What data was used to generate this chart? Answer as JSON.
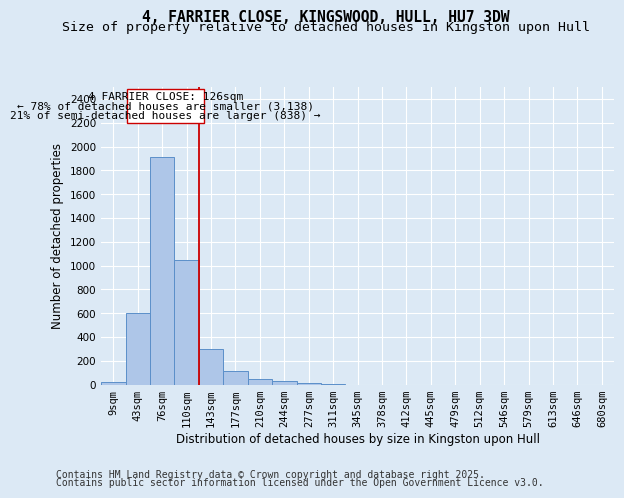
{
  "title": "4, FARRIER CLOSE, KINGSWOOD, HULL, HU7 3DW",
  "subtitle": "Size of property relative to detached houses in Kingston upon Hull",
  "xlabel": "Distribution of detached houses by size in Kingston upon Hull",
  "ylabel": "Number of detached properties",
  "categories": [
    "9sqm",
    "43sqm",
    "76sqm",
    "110sqm",
    "143sqm",
    "177sqm",
    "210sqm",
    "244sqm",
    "277sqm",
    "311sqm",
    "345sqm",
    "378sqm",
    "412sqm",
    "445sqm",
    "479sqm",
    "512sqm",
    "546sqm",
    "579sqm",
    "613sqm",
    "646sqm",
    "680sqm"
  ],
  "values": [
    20,
    605,
    1910,
    1045,
    295,
    115,
    48,
    30,
    10,
    2,
    0,
    0,
    0,
    0,
    0,
    0,
    0,
    0,
    0,
    0,
    0
  ],
  "bar_color": "#aec6e8",
  "bar_edge_color": "#5b8fc9",
  "vline_x": 3.5,
  "vline_color": "#cc0000",
  "annotation_line1": "4 FARRIER CLOSE: 126sqm",
  "annotation_line2": "← 78% of detached houses are smaller (3,138)",
  "annotation_line3": "21% of semi-detached houses are larger (838) →",
  "box_edge_color": "#cc0000",
  "ylim": [
    0,
    2500
  ],
  "yticks": [
    0,
    200,
    400,
    600,
    800,
    1000,
    1200,
    1400,
    1600,
    1800,
    2000,
    2200,
    2400
  ],
  "background_color": "#dce9f5",
  "plot_background_color": "#dce9f5",
  "footer_line1": "Contains HM Land Registry data © Crown copyright and database right 2025.",
  "footer_line2": "Contains public sector information licensed under the Open Government Licence v3.0.",
  "title_fontsize": 10.5,
  "subtitle_fontsize": 9.5,
  "axis_label_fontsize": 8.5,
  "tick_fontsize": 7.5,
  "annotation_fontsize": 8
}
